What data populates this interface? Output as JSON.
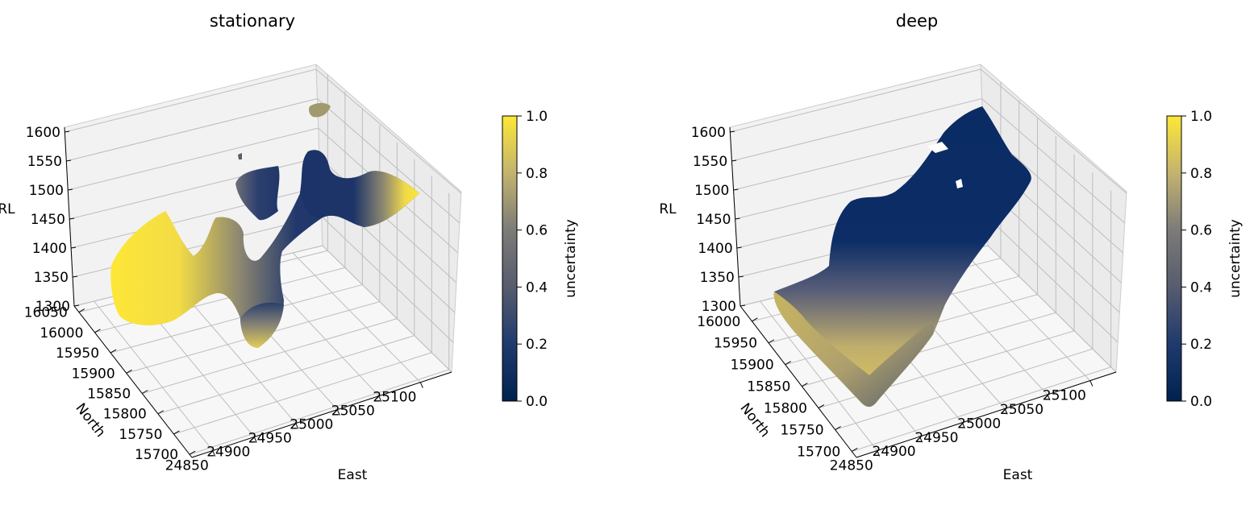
{
  "chart_data": [
    {
      "type": "surface3d",
      "title": "stationary",
      "xlabel": "East",
      "ylabel": "North",
      "zlabel": "RL",
      "x_ticks": [
        "24850",
        "24900",
        "24950",
        "25000",
        "25050",
        "25100"
      ],
      "y_ticks": [
        "15700",
        "15750",
        "15800",
        "15850",
        "15900",
        "15950",
        "16000",
        "16050"
      ],
      "z_ticks": [
        "1300",
        "1350",
        "1400",
        "1450",
        "1500",
        "1550",
        "1600"
      ],
      "zlim": [
        1300,
        1600
      ],
      "grid": true,
      "colorbar": {
        "label": "uncertainty",
        "range": [
          0.0,
          1.0
        ],
        "ticks": [
          "0.0",
          "0.2",
          "0.4",
          "0.6",
          "0.8",
          "1.0"
        ],
        "colormap": "cividis"
      },
      "colors": {
        "high": "#fde737",
        "mid": "#7c7b78",
        "low": "#00224e"
      }
    },
    {
      "type": "surface3d",
      "title": "deep",
      "xlabel": "East",
      "ylabel": "North",
      "zlabel": "RL",
      "x_ticks": [
        "24850",
        "24900",
        "24950",
        "25000",
        "25050",
        "25100"
      ],
      "y_ticks": [
        "15700",
        "15750",
        "15800",
        "15850",
        "15900",
        "15950",
        "16000"
      ],
      "z_ticks": [
        "1300",
        "1350",
        "1400",
        "1450",
        "1500",
        "1550",
        "1600"
      ],
      "zlim": [
        1300,
        1600
      ],
      "grid": true,
      "colorbar": {
        "label": "uncertainty",
        "range": [
          0.0,
          1.0
        ],
        "ticks": [
          "0.0",
          "0.2",
          "0.4",
          "0.6",
          "0.8",
          "1.0"
        ],
        "colormap": "cividis"
      },
      "colors": {
        "high": "#fde737",
        "mid": "#7c7b78",
        "low": "#00224e"
      }
    }
  ]
}
